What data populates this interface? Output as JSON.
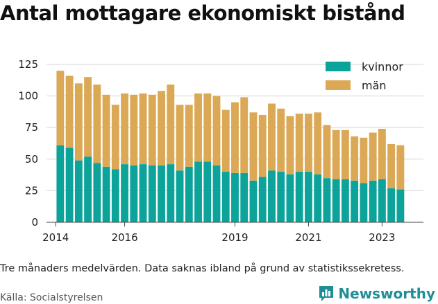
{
  "title": "Antal mottagare ekonomiskt bistånd",
  "caption": "Tre månaders medelvärden. Data saknas ibland på grund av statistikssekretess.",
  "source": "Källa: Socialstyrelsen",
  "brand": {
    "name": "Newsworthy",
    "icon": "bar-chart-logo-icon"
  },
  "colors": {
    "kvinnor": "#0ca49a",
    "man": "#dba955",
    "grid": "#d6d6d6",
    "axis": "#444444"
  },
  "chart_data": {
    "type": "bar",
    "stacked": true,
    "legend_position": "top-right",
    "grid": true,
    "ylim": [
      0,
      125
    ],
    "yticks": [
      0,
      25,
      50,
      75,
      100,
      125
    ],
    "xticks": [
      "2014",
      "2016",
      "2019",
      "2021",
      "2023"
    ],
    "xtick_positions": [
      0,
      7.5,
      19.5,
      27.5,
      35.5
    ],
    "xlim": [
      -1,
      40
    ],
    "x": [
      0.5,
      1.5,
      2.5,
      3.5,
      4.5,
      5.5,
      6.5,
      7.5,
      8.5,
      9.5,
      10.5,
      11.5,
      12.5,
      13.5,
      14.5,
      15.5,
      16.5,
      17.5,
      18.5,
      19.5,
      20.5,
      21.5,
      22.5,
      23.5,
      24.5,
      25.5,
      26.5,
      27.5,
      28.5,
      29.5,
      30.5,
      31.5,
      32.5,
      33.5,
      34.5,
      35.5,
      36.5,
      37.5
    ],
    "series": [
      {
        "name": "kvinnor",
        "values": [
          61,
          59,
          49,
          52,
          47,
          44,
          42,
          46,
          45,
          46,
          45,
          45,
          46,
          41,
          44,
          48,
          48,
          45,
          40,
          39,
          39,
          33,
          36,
          41,
          40,
          38,
          40,
          40,
          38,
          35,
          34,
          34,
          33,
          31,
          33,
          34,
          27,
          26
        ]
      },
      {
        "name": "män",
        "values": [
          59,
          57,
          61,
          63,
          62,
          57,
          51,
          56,
          56,
          56,
          56,
          59,
          63,
          52,
          49,
          54,
          54,
          55,
          49,
          56,
          60,
          54,
          49,
          53,
          50,
          46,
          46,
          46,
          49,
          42,
          39,
          39,
          35,
          36,
          38,
          40,
          35,
          35
        ]
      }
    ]
  }
}
